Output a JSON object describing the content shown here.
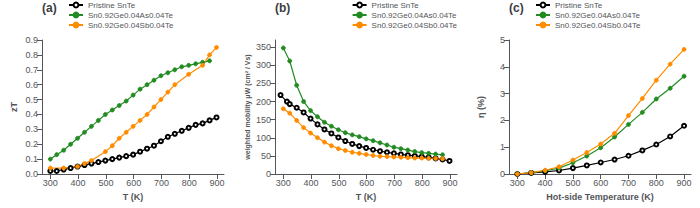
{
  "chart_data": [
    {
      "type": "line",
      "title": "(a)",
      "xlabel": "T (K)",
      "ylabel": "zT",
      "xlim": [
        270,
        925
      ],
      "ylim": [
        0,
        0.9
      ],
      "xticks": [
        300,
        400,
        500,
        600,
        700,
        800,
        900
      ],
      "yticks": [
        {
          "value": 0,
          "label": "0.0"
        },
        0.1,
        0.2,
        0.3,
        0.4,
        0.5,
        0.6,
        0.7,
        0.8,
        0.9
      ],
      "grid": false,
      "legend": "upper left",
      "series": [
        {
          "name": "Pristine SnTe",
          "color": "#000000",
          "marker": "open circle",
          "x": [
            300,
            323,
            348,
            373,
            398,
            423,
            448,
            473,
            498,
            523,
            548,
            573,
            598,
            623,
            648,
            673,
            698,
            723,
            748,
            773,
            798,
            823,
            848,
            873,
            898
          ],
          "values": [
            0.02,
            0.02,
            0.03,
            0.04,
            0.05,
            0.06,
            0.07,
            0.08,
            0.09,
            0.1,
            0.11,
            0.12,
            0.13,
            0.15,
            0.17,
            0.19,
            0.22,
            0.25,
            0.27,
            0.29,
            0.31,
            0.33,
            0.34,
            0.36,
            0.38
          ]
        },
        {
          "name": "Sn0.92Ge0.04As0.04Te",
          "color": "#228B22",
          "marker": "circle",
          "x": [
            300,
            323,
            348,
            373,
            398,
            423,
            448,
            473,
            498,
            523,
            548,
            573,
            598,
            623,
            648,
            673,
            698,
            723,
            748,
            773,
            798,
            823,
            848,
            873
          ],
          "values": [
            0.1,
            0.13,
            0.16,
            0.2,
            0.24,
            0.28,
            0.32,
            0.36,
            0.4,
            0.43,
            0.46,
            0.49,
            0.53,
            0.57,
            0.6,
            0.63,
            0.66,
            0.68,
            0.7,
            0.72,
            0.73,
            0.74,
            0.75,
            0.76
          ]
        },
        {
          "name": "Sn0.92Ge0.04Sb0.04Te",
          "color": "#FF8C00",
          "marker": "circle",
          "x": [
            300,
            348,
            398,
            423,
            448,
            498,
            523,
            548,
            573,
            598,
            623,
            648,
            673,
            698,
            723,
            748,
            798,
            848,
            873,
            898
          ],
          "values": [
            0.04,
            0.04,
            0.05,
            0.07,
            0.09,
            0.15,
            0.19,
            0.24,
            0.28,
            0.32,
            0.36,
            0.4,
            0.45,
            0.5,
            0.55,
            0.6,
            0.67,
            0.73,
            0.8,
            0.85
          ]
        }
      ]
    },
    {
      "type": "line",
      "title": "(b)",
      "xlabel": "T (K)",
      "ylabel": "weighted mobility μW (cm² / Vs)",
      "xlim": [
        270,
        925
      ],
      "ylim": [
        0,
        370
      ],
      "xticks": [
        300,
        400,
        500,
        600,
        700,
        800,
        900
      ],
      "yticks": [
        0,
        50,
        100,
        150,
        200,
        250,
        300,
        350
      ],
      "grid": false,
      "legend": "upper right",
      "series": [
        {
          "name": "Pristine SnTe",
          "color": "#000000",
          "marker": "open circle",
          "x": [
            290,
            313,
            323,
            348,
            373,
            398,
            423,
            448,
            473,
            498,
            523,
            548,
            573,
            598,
            623,
            648,
            673,
            698,
            723,
            748,
            773,
            798,
            823,
            848,
            873,
            898
          ],
          "values": [
            218,
            200,
            193,
            183,
            170,
            153,
            137,
            123,
            112,
            101,
            91,
            83,
            77,
            72,
            67,
            63,
            60,
            57,
            54,
            52,
            50,
            48,
            46,
            43,
            40,
            36
          ]
        },
        {
          "name": "Sn0.92Ge0.04As0.04Te",
          "color": "#228B22",
          "marker": "circle",
          "x": [
            300,
            323,
            348,
            373,
            398,
            423,
            448,
            473,
            498,
            523,
            548,
            573,
            598,
            623,
            648,
            673,
            698,
            723,
            748,
            773,
            798,
            823,
            848,
            873
          ],
          "values": [
            348,
            312,
            245,
            200,
            175,
            158,
            143,
            132,
            122,
            114,
            108,
            103,
            97,
            92,
            86,
            80,
            74,
            70,
            66,
            62,
            59,
            57,
            55,
            53
          ]
        },
        {
          "name": "Sn0.92Ge0.04Sb0.04Te",
          "color": "#FF8C00",
          "marker": "circle",
          "x": [
            300,
            323,
            348,
            373,
            398,
            423,
            448,
            473,
            498,
            523,
            548,
            573,
            598,
            623,
            648,
            673,
            698,
            723,
            748,
            773,
            798,
            823,
            848,
            873
          ],
          "values": [
            180,
            168,
            148,
            128,
            113,
            100,
            88,
            78,
            70,
            65,
            60,
            57,
            54,
            51,
            49,
            48,
            47,
            46,
            45,
            44,
            44,
            43,
            43,
            42
          ]
        }
      ]
    },
    {
      "type": "line",
      "title": "(c)",
      "xlabel": "Hot-side Temperature (K)",
      "ylabel": "η (%)",
      "xlim": [
        270,
        925
      ],
      "ylim": [
        0,
        5
      ],
      "xticks": [
        300,
        400,
        500,
        600,
        700,
        800,
        900
      ],
      "yticks": [
        0,
        1,
        2,
        3,
        4,
        5
      ],
      "grid": false,
      "legend": "upper left",
      "series": [
        {
          "name": "Pristine SnTe",
          "color": "#000000",
          "marker": "open circle",
          "x": [
            300,
            350,
            400,
            450,
            500,
            550,
            600,
            650,
            700,
            750,
            800,
            850,
            900
          ],
          "values": [
            0.0,
            0.04,
            0.08,
            0.13,
            0.22,
            0.32,
            0.43,
            0.54,
            0.68,
            0.88,
            1.1,
            1.4,
            1.8
          ]
        },
        {
          "name": "Sn0.92Ge0.04As0.04Te",
          "color": "#228B22",
          "marker": "circle",
          "x": [
            300,
            350,
            400,
            450,
            500,
            550,
            600,
            650,
            700,
            750,
            800,
            850,
            900
          ],
          "values": [
            0.0,
            0.05,
            0.12,
            0.22,
            0.42,
            0.67,
            0.98,
            1.38,
            1.85,
            2.3,
            2.8,
            3.2,
            3.65
          ]
        },
        {
          "name": "Sn0.92Ge0.04Sb0.04Te",
          "color": "#FF8C00",
          "marker": "circle",
          "x": [
            300,
            350,
            400,
            450,
            500,
            550,
            600,
            650,
            700,
            750,
            800,
            850,
            900
          ],
          "values": [
            0.0,
            0.05,
            0.14,
            0.27,
            0.52,
            0.8,
            1.12,
            1.52,
            2.18,
            2.82,
            3.5,
            4.1,
            4.65
          ]
        }
      ]
    }
  ]
}
